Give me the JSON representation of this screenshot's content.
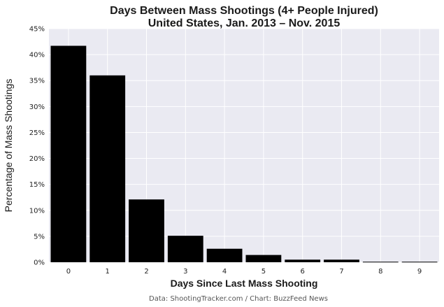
{
  "chart_data": {
    "type": "bar",
    "title": [
      "Days Between Mass Shootings (4+ People Injured)",
      "United States, Jan. 2013 – Nov. 2015"
    ],
    "xlabel": "Days Since Last Mass Shooting",
    "ylabel": "Percentage of Mass Shootings",
    "categories": [
      "0",
      "1",
      "2",
      "3",
      "4",
      "5",
      "6",
      "7",
      "8",
      "9"
    ],
    "values": [
      41.7,
      36.0,
      12.1,
      5.1,
      2.6,
      1.4,
      0.5,
      0.5,
      0.1,
      0.1
    ],
    "ylim": [
      0,
      45
    ],
    "yticks": [
      0,
      5,
      10,
      15,
      20,
      25,
      30,
      35,
      40,
      45
    ],
    "ytick_labels": [
      "0%",
      "5%",
      "10%",
      "15%",
      "20%",
      "25%",
      "30%",
      "35%",
      "40%",
      "45%"
    ],
    "grid": true,
    "background_color": "#eaeaf2",
    "bar_color": "#000000",
    "source": "Data: ShootingTracker.com / Chart: BuzzFeed News"
  }
}
